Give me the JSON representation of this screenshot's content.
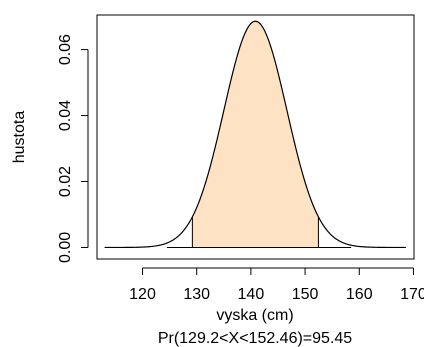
{
  "chart_data": {
    "type": "area",
    "distribution": "normal",
    "mean": 140.83,
    "sd": 5.815,
    "xlabel": "vyska (cm)",
    "ylabel": "hustota",
    "subtitle": "Pr(129.2<X<152.46)=95.45",
    "xlim": [
      111.6,
      170.1
    ],
    "ylim": [
      -0.0035,
      0.0705
    ],
    "curve_range": [
      113.0,
      168.6
    ],
    "baseline_range": [
      124.5,
      158.5
    ],
    "shaded_interval": [
      129.2,
      152.46
    ],
    "x_ticks": [
      120,
      130,
      140,
      150,
      160,
      170
    ],
    "x_tick_labels": [
      "120",
      "130",
      "140",
      "150",
      "160",
      "170"
    ],
    "y_ticks": [
      0.0,
      0.02,
      0.04,
      0.06
    ],
    "y_tick_labels": [
      "0.00",
      "0.02",
      "0.04",
      "0.06"
    ],
    "shade_color": "#fde3c4",
    "line_color": "#000000"
  }
}
